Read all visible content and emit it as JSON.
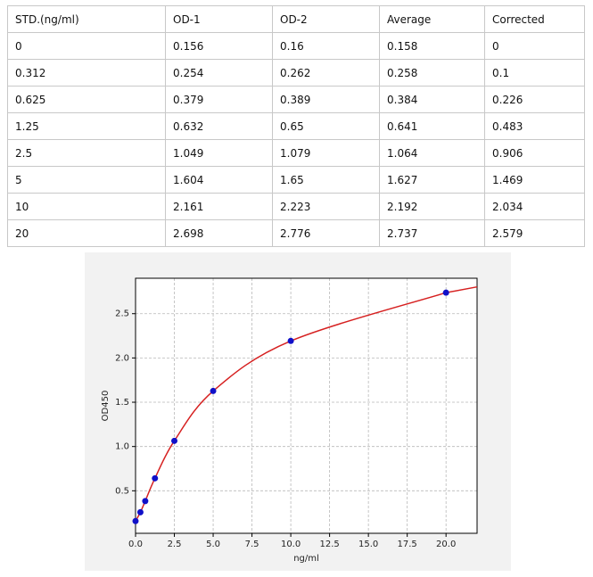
{
  "table": {
    "header": [
      "STD.(ng/ml)",
      "OD-1",
      "OD-2",
      "Average",
      "Corrected"
    ],
    "rows": [
      [
        0,
        0.156,
        0.16,
        0.158,
        0
      ],
      [
        0.312,
        0.254,
        0.262,
        0.258,
        0.1
      ],
      [
        0.625,
        0.379,
        0.389,
        0.384,
        0.226
      ],
      [
        1.25,
        0.632,
        0.65,
        0.641,
        0.483
      ],
      [
        2.5,
        1.049,
        1.079,
        1.064,
        0.906
      ],
      [
        5,
        1.604,
        1.65,
        1.627,
        1.469
      ],
      [
        10,
        2.161,
        2.223,
        2.192,
        2.034
      ],
      [
        20,
        2.698,
        2.776,
        2.737,
        2.579
      ]
    ]
  },
  "chart_data": {
    "type": "scatter",
    "x_label": "ng/ml",
    "y_label": "OD450",
    "xlim": [
      0,
      22
    ],
    "ylim": [
      0.02,
      2.9
    ],
    "xticks": [
      {
        "value": 0,
        "label": "0.0"
      },
      2.5,
      {
        "value": 5,
        "label": "5.0"
      },
      7.5,
      {
        "value": 10,
        "label": "10.0"
      },
      12.5,
      {
        "value": 15,
        "label": "15.0"
      },
      17.5,
      {
        "value": 20,
        "label": "20.0"
      }
    ],
    "yticks": [
      0.5,
      {
        "value": 1,
        "label": "1.0"
      },
      1.5,
      {
        "value": 2,
        "label": "2.0"
      },
      2.5
    ],
    "grid": true,
    "point_color": "#1010c8",
    "curve_color": "#d62020"
  }
}
